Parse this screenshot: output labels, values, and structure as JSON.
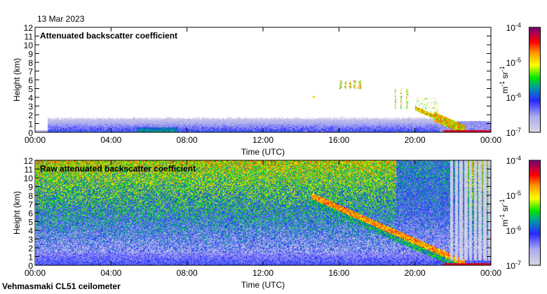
{
  "date_label": "13 Mar 2023",
  "footer_label": "Vehmasmaki CL51 ceilometer",
  "chart_data": [
    {
      "type": "heatmap",
      "title": "Attenuated backscatter coefficient",
      "xlabel": "Time (UTC)",
      "ylabel": "Height (km)",
      "xlim": [
        0,
        24
      ],
      "ylim": [
        0,
        12
      ],
      "xticks": [
        "00:00",
        "04:00",
        "08:00",
        "12:00",
        "16:00",
        "20:00",
        "00:00"
      ],
      "yticks": [
        "0",
        "1",
        "2",
        "3",
        "4",
        "5",
        "6",
        "7",
        "8",
        "9",
        "10",
        "11",
        "12"
      ],
      "colorbar": {
        "label": "m-1 sr-1",
        "label_main": "m",
        "label_exp1": "-1",
        "label_mid": " sr",
        "label_exp2": "-1",
        "scale": "log",
        "range": [
          1e-07,
          0.0001
        ],
        "ticks": [
          {
            "base": "10",
            "exp": "-4"
          },
          {
            "base": "10",
            "exp": "-5"
          },
          {
            "base": "10",
            "exp": "-6"
          },
          {
            "base": "10",
            "exp": "-7"
          }
        ]
      },
      "features": [
        {
          "desc": "boundary layer",
          "time_range": [
            0.6,
            21.5
          ],
          "height_top_km": 1.8
        },
        {
          "desc": "cloud fragments",
          "time_range": [
            16.0,
            17.2
          ],
          "height_km": [
            5.0,
            6.0
          ]
        },
        {
          "desc": "cloud fragments",
          "time_range": [
            18.8,
            19.6
          ],
          "height_km": [
            2.7,
            5.0
          ]
        },
        {
          "desc": "descending cloud base",
          "time_range": [
            20.0,
            22.5
          ],
          "height_km": [
            4.0,
            0.3
          ]
        }
      ]
    },
    {
      "type": "heatmap",
      "title": "Raw attenuated backscatter coefficient",
      "xlabel": "Time (UTC)",
      "ylabel": "Height (km)",
      "xlim": [
        0,
        24
      ],
      "ylim": [
        0,
        12
      ],
      "xticks": [
        "00:00",
        "04:00",
        "08:00",
        "12:00",
        "16:00",
        "20:00",
        "00:00"
      ],
      "yticks": [
        "0",
        "1",
        "2",
        "3",
        "4",
        "5",
        "6",
        "7",
        "8",
        "9",
        "10",
        "11",
        "12"
      ],
      "colorbar": {
        "label": "m-1 sr-1",
        "label_main": "m",
        "label_exp1": "-1",
        "label_mid": " sr",
        "label_exp2": "-1",
        "scale": "log",
        "range": [
          1e-07,
          0.0001
        ],
        "ticks": [
          {
            "base": "10",
            "exp": "-4"
          },
          {
            "base": "10",
            "exp": "-5"
          },
          {
            "base": "10",
            "exp": "-6"
          },
          {
            "base": "10",
            "exp": "-7"
          }
        ]
      },
      "features": [
        {
          "desc": "noisy signal increasing with height",
          "time_range": [
            0,
            24
          ]
        },
        {
          "desc": "descending cloud layer",
          "time_range": [
            14.5,
            22.5
          ],
          "height_km": [
            8.0,
            0.5
          ]
        }
      ]
    }
  ]
}
